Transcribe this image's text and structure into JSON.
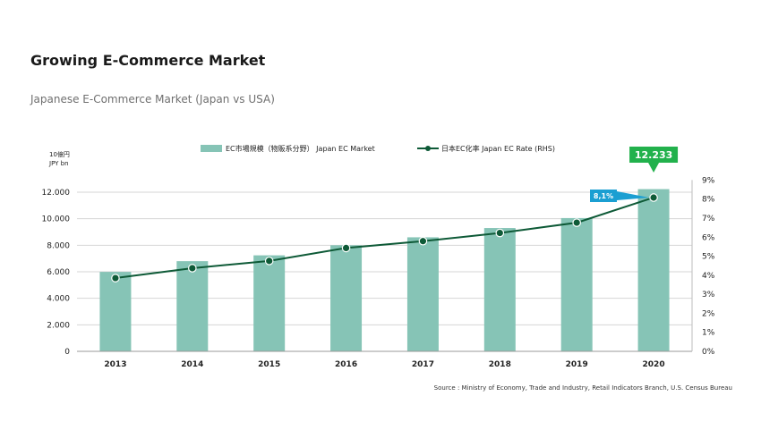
{
  "header": {
    "title": "Growing E-Commerce Market",
    "subtitle": "Japanese E-Commerce Market  (Japan vs USA)"
  },
  "colors": {
    "bar": "#86c4b6",
    "line": "#0e5a37",
    "highlight_bar_label": "#22b14c",
    "highlight_rate_label": "#1b9fd2"
  },
  "chart_data": {
    "type": "bar",
    "categories": [
      "2013",
      "2014",
      "2015",
      "2016",
      "2017",
      "2018",
      "2019",
      "2020"
    ],
    "series": [
      {
        "name": "EC市場規模（物販系分野） Japan EC Market",
        "type": "bar",
        "axis": "left",
        "values": [
          5990,
          6800,
          7240,
          8000,
          8600,
          9300,
          10050,
          12233
        ]
      },
      {
        "name": "日本EC化率 Japan EC Rate (RHS)",
        "type": "line",
        "axis": "right",
        "values": [
          3.85,
          4.37,
          4.75,
          5.43,
          5.79,
          6.22,
          6.76,
          8.08
        ]
      }
    ],
    "ylim": [
      0,
      12000
    ],
    "y_ticks": [
      "0",
      "2.000",
      "4.000",
      "6.000",
      "8.000",
      "10.000",
      "12.000"
    ],
    "y2lim": [
      0,
      9
    ],
    "y2_ticks": [
      "0%",
      "1%",
      "2%",
      "3%",
      "4%",
      "5%",
      "6%",
      "7%",
      "8%",
      "9%"
    ],
    "y_unit_label": [
      "10億円",
      "JPY bn"
    ],
    "annotations": {
      "bar_2020": "12.233",
      "rate_2020": "8,1%"
    },
    "legend_position": "top-center",
    "grid": true,
    "source": "Source : Ministry of Economy, Trade and Industry, Retail Indicators Branch, U.S. Census Bureau"
  }
}
